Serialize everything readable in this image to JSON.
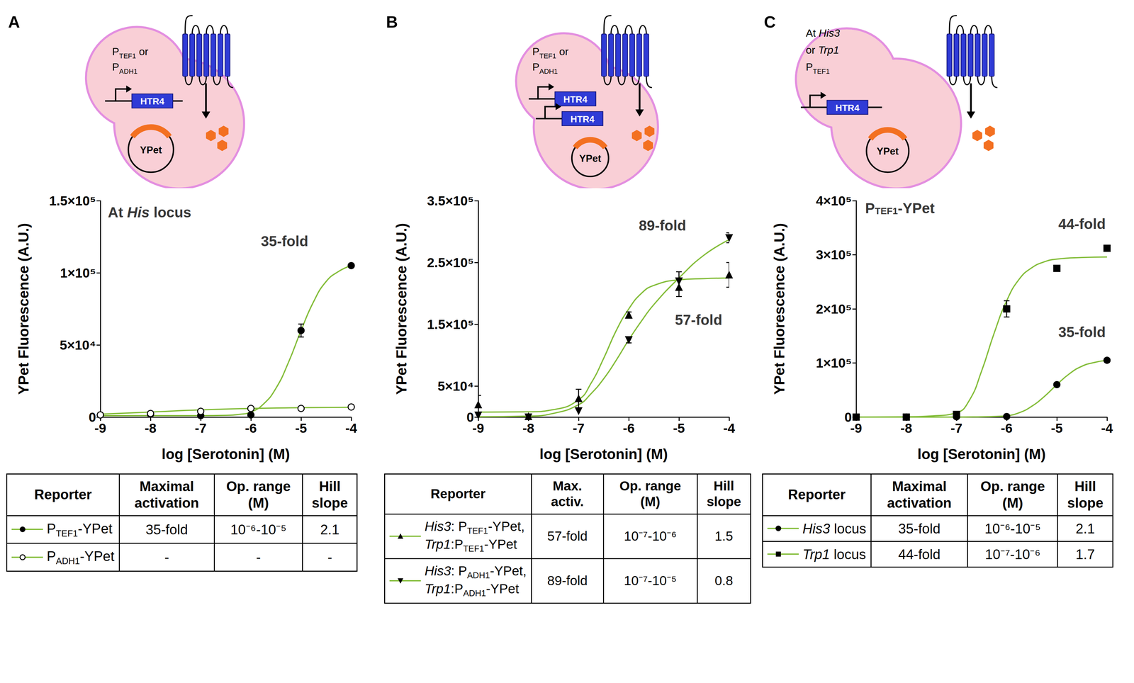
{
  "chart_data": [
    {
      "type": "line",
      "x_label": "log [Serotonin] (M)",
      "y_label": "YPet Fluorescence (A.U.)",
      "xlim": [
        -9,
        -4
      ],
      "xticks": [
        -9,
        -8,
        -7,
        -6,
        -5,
        -4
      ],
      "ylim": [
        0,
        150000
      ],
      "yticks": [
        0,
        {
          "value": 50000,
          "label": "5×10⁴"
        },
        {
          "value": 100000,
          "label": "1×10⁵"
        },
        {
          "value": 150000,
          "label": "1.5×10⁵"
        }
      ],
      "grid": false,
      "annotations": [
        {
          "text": "At His locus",
          "x": -8.85,
          "y": 142000
        },
        {
          "text": "35-fold",
          "x": -5.8,
          "y": 122000
        }
      ],
      "series": [
        {
          "name": "PTEF1-YPet",
          "color": "#84bd3a",
          "marker": "circle",
          "x": [
            -9,
            -8,
            -7,
            -6,
            -5,
            -4
          ],
          "values": [
            1500,
            2000,
            1000,
            1500,
            60000,
            105000
          ],
          "errors": [
            null,
            null,
            null,
            null,
            4500,
            null
          ],
          "fit": {
            "x": [
              -9,
              -8.5,
              -8,
              -7.5,
              -7,
              -6.5,
              -6.25,
              -6,
              -5.75,
              -5.5,
              -5.25,
              -5,
              -4.75,
              -4.5,
              -4.25,
              -4
            ],
            "values": [
              1000,
              1000,
              1000,
              1000,
              1000,
              1200,
              1800,
              3500,
              9000,
              20000,
              38000,
              60000,
              80000,
              94000,
              101000,
              105000
            ]
          }
        },
        {
          "name": "PADH1-YPet",
          "color": "#84bd3a",
          "marker": "open circle",
          "x": [
            -9,
            -8,
            -7,
            -6,
            -5,
            -4
          ],
          "values": [
            1500,
            2500,
            4000,
            6000,
            6000,
            7000
          ],
          "errors": [
            null,
            null,
            null,
            null,
            null,
            null
          ],
          "fit": {
            "x": [
              -9,
              -8,
              -7,
              -6,
              -5,
              -4
            ],
            "values": [
              2000,
              3500,
              5000,
              6000,
              6500,
              6800
            ]
          }
        }
      ]
    },
    {
      "type": "line",
      "x_label": "log [Serotonin] (M)",
      "y_label": "YPet Fluorescence (A.U.)",
      "xlim": [
        -9,
        -4
      ],
      "xticks": [
        -9,
        -8,
        -7,
        -6,
        -5,
        -4
      ],
      "ylim": [
        0,
        350000
      ],
      "yticks": [
        0,
        {
          "value": 50000,
          "label": "5×10⁴"
        },
        {
          "value": 150000,
          "label": "1.5×10⁵"
        },
        {
          "value": 250000,
          "label": "2.5×10⁵"
        },
        {
          "value": 350000,
          "label": "3.5×10⁵"
        }
      ],
      "grid": false,
      "annotations": [
        {
          "text": "89-fold",
          "x": -5.8,
          "y": 310000
        },
        {
          "text": "57-fold",
          "x": -5.08,
          "y": 157000
        }
      ],
      "series": [
        {
          "name": "His3: PTEF1-YPet, Trp1:PTEF1-YPet",
          "color": "#84bd3a",
          "marker": "triangle",
          "x": [
            -9,
            -8,
            -7,
            -6,
            -5,
            -4
          ],
          "values": [
            20000,
            1000,
            30000,
            165000,
            210000,
            230000
          ],
          "errors": [
            15000,
            null,
            15000,
            5000,
            15000,
            20000
          ],
          "fit": {
            "x": [
              -9,
              -8,
              -7.5,
              -7,
              -6.75,
              -6.5,
              -6.25,
              -6,
              -5.75,
              -5.5,
              -5,
              -4.5,
              -4
            ],
            "values": [
              8000,
              8500,
              12000,
              28000,
              55000,
              95000,
              140000,
              175000,
              200000,
              213000,
              222000,
              224000,
              225000
            ]
          }
        },
        {
          "name": "His3: PADH1-YPet, Trp1:PADH1-YPet",
          "color": "#84bd3a",
          "marker": "triangle-down",
          "x": [
            -9,
            -8,
            -7,
            -6,
            -5,
            -4
          ],
          "values": [
            3000,
            0,
            10000,
            125000,
            220000,
            290000
          ],
          "errors": [
            null,
            null,
            null,
            5000,
            15000,
            8000
          ],
          "fit": {
            "x": [
              -9,
              -8,
              -7.5,
              -7,
              -6.75,
              -6.5,
              -6.25,
              -6,
              -5.75,
              -5.5,
              -5,
              -4.5,
              -4
            ],
            "values": [
              500,
              1500,
              6000,
              20000,
              38000,
              62000,
              92000,
              125000,
              155000,
              182000,
              225000,
              262000,
              287000
            ]
          }
        }
      ]
    },
    {
      "type": "line",
      "x_label": "log [Serotonin] (M)",
      "y_label": "YPet Fluorescence (A.U.)",
      "xlim": [
        -9,
        -4
      ],
      "xticks": [
        -9,
        -8,
        -7,
        -6,
        -5,
        -4
      ],
      "ylim": [
        0,
        400000
      ],
      "yticks": [
        0,
        {
          "value": 100000,
          "label": "1×10⁵"
        },
        {
          "value": 200000,
          "label": "2×10⁵"
        },
        {
          "value": 300000,
          "label": "3×10⁵"
        },
        {
          "value": 400000,
          "label": "4×10⁵"
        }
      ],
      "grid": false,
      "annotations": [
        {
          "text": "PTEF1-YPet",
          "x": -8.82,
          "y": 386000
        },
        {
          "text": "44-fold",
          "x": -4.97,
          "y": 357000
        },
        {
          "text": "35-fold",
          "x": -4.97,
          "y": 157000
        }
      ],
      "series": [
        {
          "name": "His3 locus",
          "color": "#84bd3a",
          "marker": "circle",
          "x": [
            -9,
            -8,
            -7,
            -6,
            -5,
            -4
          ],
          "values": [
            0,
            0,
            500,
            1000,
            60000,
            105000
          ],
          "errors": [
            null,
            null,
            null,
            null,
            null,
            null
          ],
          "fit": {
            "x": [
              -9,
              -8,
              -7,
              -6.5,
              -6.25,
              -6,
              -5.75,
              -5.5,
              -5.25,
              -5,
              -4.75,
              -4.5,
              -4.25,
              -4
            ],
            "values": [
              0,
              0,
              0,
              500,
              1000,
              2500,
              8000,
              20000,
              38000,
              60000,
              80000,
              94000,
              101000,
              105000
            ]
          }
        },
        {
          "name": "Trp1 locus",
          "color": "#84bd3a",
          "marker": "square",
          "x": [
            -9,
            -8,
            -7,
            -6,
            -5,
            -4
          ],
          "values": [
            0,
            0,
            5000,
            200000,
            275000,
            312000
          ],
          "errors": [
            null,
            null,
            null,
            15000,
            null,
            null
          ],
          "fit": {
            "x": [
              -9,
              -8,
              -7.5,
              -7,
              -6.75,
              -6.5,
              -6.25,
              -6,
              -5.75,
              -5.5,
              -5.25,
              -5,
              -4.5,
              -4
            ],
            "values": [
              0,
              500,
              2000,
              8000,
              30000,
              85000,
              155000,
              215000,
              255000,
              276000,
              287000,
              292000,
              295000,
              296000
            ]
          }
        }
      ]
    }
  ],
  "panels": [
    {
      "letter": "A",
      "diagram": {
        "promoter": [
          "PTEF1 or",
          "PADH1"
        ],
        "genes": [
          "HTR4"
        ],
        "plasmid": "YPet"
      },
      "table": {
        "columns": [
          "Reporter",
          "Maximal activation",
          "Op. range (M)",
          "Hill slope"
        ],
        "rows": [
          [
            "35-fold",
            "10⁻⁶-10⁻⁵",
            "2.1"
          ],
          [
            "-",
            "-",
            "-"
          ]
        ]
      }
    },
    {
      "letter": "B",
      "diagram": {
        "promoter": [
          "PTEF1 or",
          "PADH1"
        ],
        "genes": [
          "HTR4",
          "HTR4"
        ],
        "plasmid": "YPet"
      },
      "table": {
        "columns": [
          "Reporter",
          "Max. activ.",
          "Op. range (M)",
          "Hill slope"
        ],
        "rows": [
          [
            "57-fold",
            "10⁻⁷-10⁻⁶",
            "1.5"
          ],
          [
            "89-fold",
            "10⁻⁷-10⁻⁵",
            "0.8"
          ]
        ]
      }
    },
    {
      "letter": "C",
      "diagram": {
        "promoter": [
          "At His3",
          "or Trp1",
          "PTEF1"
        ],
        "genes": [
          "HTR4"
        ],
        "plasmid": "YPet"
      },
      "table": {
        "columns": [
          "Reporter",
          "Maximal activation",
          "Op. range (M)",
          "Hill slope"
        ],
        "rows": [
          [
            "35-fold",
            "10⁻⁶-10⁻⁵",
            "2.1"
          ],
          [
            "44-fold",
            "10⁻⁷-10⁻⁶",
            "1.7"
          ]
        ]
      }
    }
  ]
}
